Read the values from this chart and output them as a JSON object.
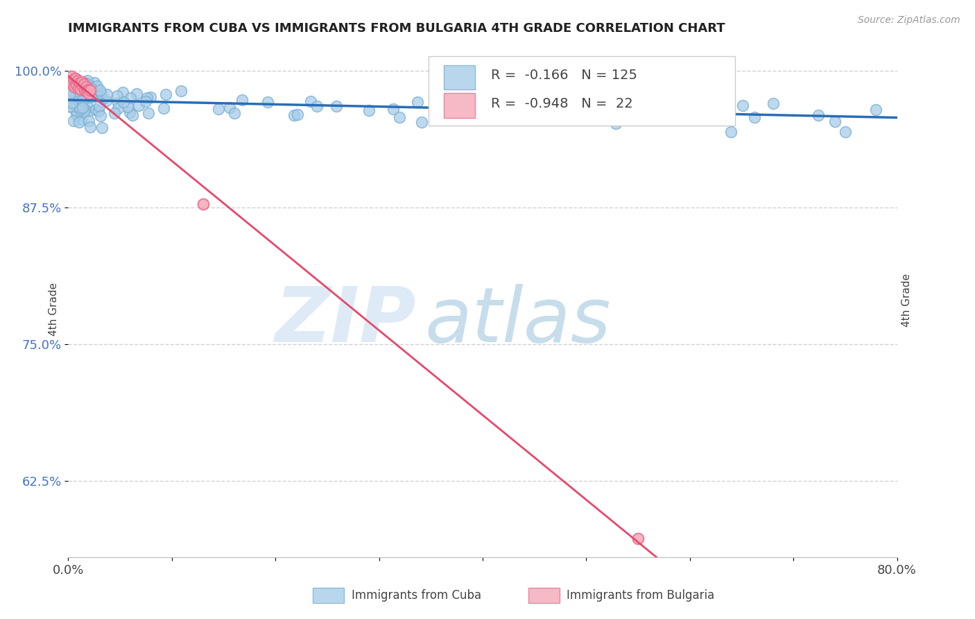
{
  "title": "IMMIGRANTS FROM CUBA VS IMMIGRANTS FROM BULGARIA 4TH GRADE CORRELATION CHART",
  "source": "Source: ZipAtlas.com",
  "ylabel": "4th Grade",
  "xlim": [
    0.0,
    0.8
  ],
  "ylim": [
    0.555,
    1.025
  ],
  "x_ticks": [
    0.0,
    0.1,
    0.2,
    0.3,
    0.4,
    0.5,
    0.6,
    0.7,
    0.8
  ],
  "x_tick_labels": [
    "0.0%",
    "",
    "",
    "",
    "",
    "",
    "",
    "",
    "80.0%"
  ],
  "y_ticks": [
    0.625,
    0.75,
    0.875,
    1.0
  ],
  "y_tick_labels": [
    "62.5%",
    "75.0%",
    "87.5%",
    "100.0%"
  ],
  "cuba_color": "#a8cde8",
  "cuba_edge_color": "#7aafd4",
  "bulgaria_color": "#f4a8b8",
  "bulgaria_edge_color": "#e87090",
  "cuba_line_color": "#2a6db5",
  "bulgaria_line_color": "#e8476a",
  "cuba_R": -0.166,
  "cuba_N": 125,
  "bulgaria_R": -0.948,
  "bulgaria_N": 22,
  "watermark_zip": "ZIP",
  "watermark_atlas": "atlas",
  "legend_cuba_label": "Immigrants from Cuba",
  "legend_bulgaria_label": "Immigrants from Bulgaria"
}
